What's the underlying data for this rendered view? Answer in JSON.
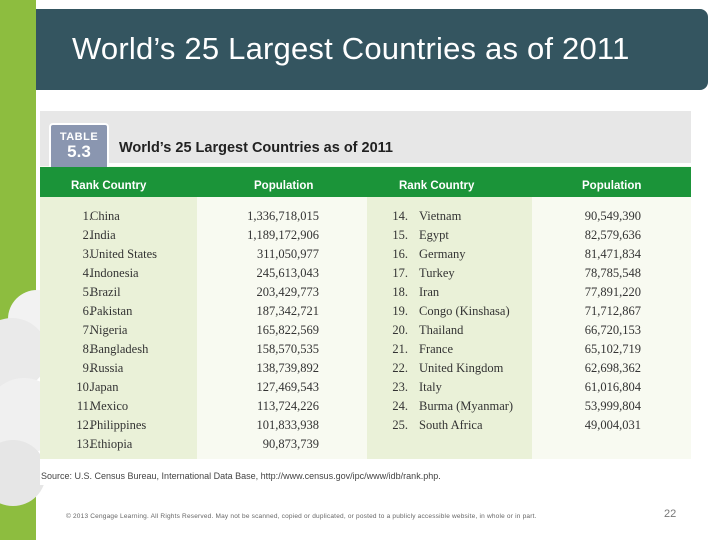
{
  "slide": {
    "title": "World’s 25 Largest Countries as of 2011",
    "footer": "© 2013 Cengage Learning. All Rights Reserved. May not be scanned, copied or duplicated, or posted to a publicly accessible website, in whole or in part.",
    "page_number": "22"
  },
  "table": {
    "badge_word": "TABLE",
    "badge_number": "5.3",
    "title": "World’s 25 Largest Countries as of 2011",
    "headers": {
      "rank_country_left": "Rank Country",
      "population_left": "Population",
      "rank_country_right": "Rank Country",
      "population_right": "Population"
    },
    "rows_left": [
      {
        "rank": "1.",
        "country": "China",
        "population": "1,336,718,015"
      },
      {
        "rank": "2.",
        "country": "India",
        "population": "1,189,172,906"
      },
      {
        "rank": "3.",
        "country": "United States",
        "population": "311,050,977"
      },
      {
        "rank": "4.",
        "country": "Indonesia",
        "population": "245,613,043"
      },
      {
        "rank": "5.",
        "country": "Brazil",
        "population": "203,429,773"
      },
      {
        "rank": "6.",
        "country": "Pakistan",
        "population": "187,342,721"
      },
      {
        "rank": "7.",
        "country": "Nigeria",
        "population": "165,822,569"
      },
      {
        "rank": "8.",
        "country": "Bangladesh",
        "population": "158,570,535"
      },
      {
        "rank": "9.",
        "country": "Russia",
        "population": "138,739,892"
      },
      {
        "rank": "10.",
        "country": "Japan",
        "population": "127,469,543"
      },
      {
        "rank": "11.",
        "country": "Mexico",
        "population": "113,724,226"
      },
      {
        "rank": "12.",
        "country": "Philippines",
        "population": "101,833,938"
      },
      {
        "rank": "13.",
        "country": "Ethiopia",
        "population": "90,873,739"
      }
    ],
    "rows_right": [
      {
        "rank": "14.",
        "country": "Vietnam",
        "population": "90,549,390"
      },
      {
        "rank": "15.",
        "country": "Egypt",
        "population": "82,579,636"
      },
      {
        "rank": "16.",
        "country": "Germany",
        "population": "81,471,834"
      },
      {
        "rank": "17.",
        "country": "Turkey",
        "population": "78,785,548"
      },
      {
        "rank": "18.",
        "country": "Iran",
        "population": "77,891,220"
      },
      {
        "rank": "19.",
        "country": "Congo (Kinshasa)",
        "population": "71,712,867"
      },
      {
        "rank": "20.",
        "country": "Thailand",
        "population": "66,720,153"
      },
      {
        "rank": "21.",
        "country": "France",
        "population": "65,102,719"
      },
      {
        "rank": "22.",
        "country": "United Kingdom",
        "population": "62,698,362"
      },
      {
        "rank": "23.",
        "country": "Italy",
        "population": "61,016,804"
      },
      {
        "rank": "24.",
        "country": "Burma (Myanmar)",
        "population": "53,999,804"
      },
      {
        "rank": "25.",
        "country": "South Africa",
        "population": "49,004,031"
      }
    ],
    "source": "Source: U.S. Census Bureau, International Data Base, http://www.census.gov/ipc/www/idb/rank.php."
  },
  "colors": {
    "accent_green": "#8dbd3f",
    "title_bar": "#345560",
    "table_header_green": "#1b9439",
    "badge": "#8a96b0"
  }
}
